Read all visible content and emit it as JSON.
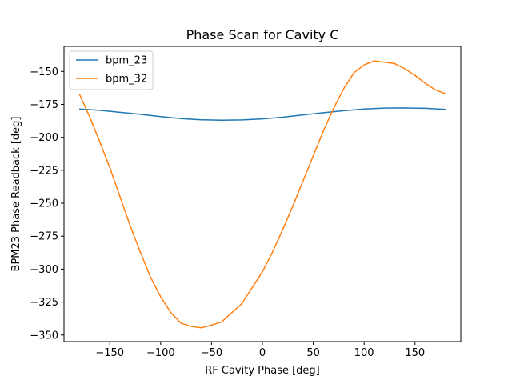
{
  "chart_data": {
    "type": "line",
    "title": "Phase Scan for Cavity C",
    "xlabel": "RF Cavity Phase [deg]",
    "ylabel": "BPM23 Phase Readback [deg]",
    "xlim": [
      -195,
      195
    ],
    "ylim": [
      -355,
      -131
    ],
    "xticks": [
      -150,
      -100,
      -50,
      0,
      50,
      100,
      150
    ],
    "yticks": [
      -350,
      -325,
      -300,
      -275,
      -250,
      -225,
      -200,
      -175,
      -150
    ],
    "xtick_labels": [
      "−150",
      "−100",
      "−50",
      "0",
      "50",
      "100",
      "150"
    ],
    "ytick_labels": [
      "−350",
      "−325",
      "−300",
      "−275",
      "−250",
      "−225",
      "−200",
      "−175",
      "−150"
    ],
    "grid": false,
    "legend": "upper-left",
    "series": [
      {
        "name": "bpm_23",
        "color": "#1f77b4",
        "x": [
          -180,
          -160,
          -140,
          -120,
          -100,
          -80,
          -60,
          -40,
          -20,
          0,
          20,
          40,
          60,
          80,
          100,
          120,
          140,
          160,
          180
        ],
        "y": [
          -178.5,
          -179.5,
          -181.0,
          -182.5,
          -184.3,
          -185.8,
          -186.7,
          -187.0,
          -186.8,
          -186.0,
          -184.7,
          -183.0,
          -181.3,
          -179.8,
          -178.5,
          -177.8,
          -177.7,
          -178.0,
          -178.8
        ]
      },
      {
        "name": "bpm_32",
        "color": "#ff7f0e",
        "x": [
          -180,
          -170,
          -160,
          -150,
          -140,
          -130,
          -120,
          -110,
          -100,
          -90,
          -80,
          -70,
          -60,
          -50,
          -40,
          -30,
          -20,
          -10,
          0,
          10,
          20,
          30,
          40,
          50,
          60,
          70,
          80,
          90,
          100,
          110,
          120,
          130,
          140,
          150,
          160,
          170,
          180
        ],
        "y": [
          -167,
          -184,
          -203,
          -223,
          -245,
          -267,
          -287,
          -306,
          -321,
          -333,
          -341,
          -343.5,
          -344.5,
          -342.5,
          -340,
          -333,
          -326,
          -314,
          -302,
          -287,
          -270,
          -252,
          -233,
          -214,
          -195,
          -178,
          -163,
          -151,
          -145,
          -142,
          -143,
          -144,
          -148,
          -153,
          -159,
          -164,
          -167
        ]
      }
    ]
  }
}
